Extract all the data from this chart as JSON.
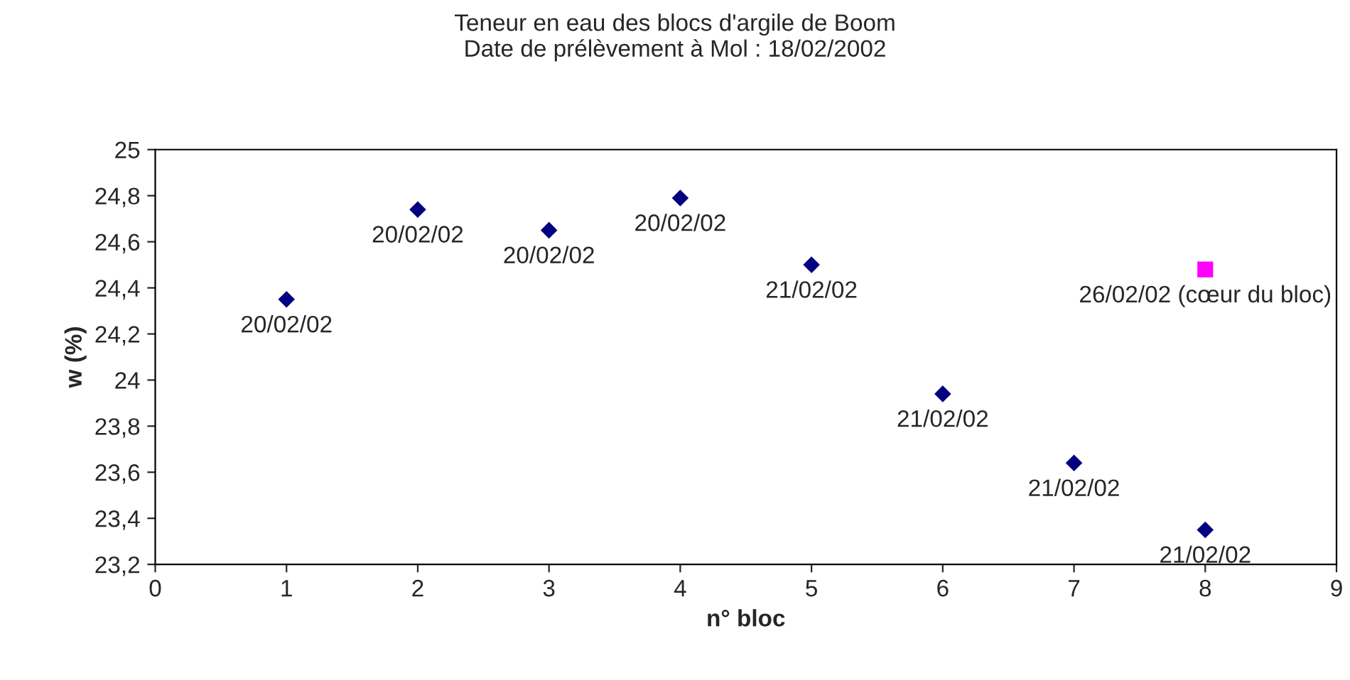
{
  "chart_data": {
    "type": "scatter",
    "title": "Teneur en eau des blocs d'argile de Boom\nDate de prélèvement à Mol : 18/02/2002",
    "xlabel": "n° bloc",
    "ylabel": "w (%)",
    "series": [
      {
        "color": "#000080",
        "marker": "diamond",
        "x": [
          1,
          2,
          3,
          4,
          5,
          6,
          7,
          8
        ],
        "values": [
          24.35,
          24.74,
          24.65,
          24.79,
          24.5,
          23.94,
          23.64,
          23.35
        ]
      },
      {
        "color": "#ff00ff",
        "marker": "square",
        "x": [
          8
        ],
        "values": [
          24.48
        ]
      }
    ],
    "xlim": [
      0,
      9
    ],
    "xticks": [
      0,
      1,
      2,
      3,
      4,
      5,
      6,
      7,
      8,
      9
    ],
    "ylim": [
      23.2,
      25
    ],
    "yticks": [
      {
        "value": 23.2,
        "label": "23,2"
      },
      {
        "value": 23.4,
        "label": "23,4"
      },
      {
        "value": 23.6,
        "label": "23,6"
      },
      {
        "value": 23.8,
        "label": "23,8"
      },
      {
        "value": 24,
        "label": "24"
      },
      {
        "value": 24.2,
        "label": "24,2"
      },
      {
        "value": 24.4,
        "label": "24,4"
      },
      {
        "value": 24.6,
        "label": "24,6"
      },
      {
        "value": 24.8,
        "label": "24,8"
      },
      {
        "value": 25,
        "label": "25"
      }
    ],
    "annotations": [
      {
        "text": "20/02/02",
        "x": 1,
        "y": 24.35
      },
      {
        "text": "20/02/02",
        "x": 2,
        "y": 24.74
      },
      {
        "text": "20/02/02",
        "x": 3,
        "y": 24.65
      },
      {
        "text": "20/02/02",
        "x": 4,
        "y": 24.79
      },
      {
        "text": "21/02/02",
        "x": 5,
        "y": 24.5
      },
      {
        "text": "21/02/02",
        "x": 6,
        "y": 23.94
      },
      {
        "text": "21/02/02",
        "x": 7,
        "y": 23.64
      },
      {
        "text": "21/02/02",
        "x": 8,
        "y": 23.35
      },
      {
        "text": "26/02/02 (cœur du bloc)",
        "x": 8,
        "y": 24.48
      }
    ],
    "grid": false,
    "legend": false
  }
}
